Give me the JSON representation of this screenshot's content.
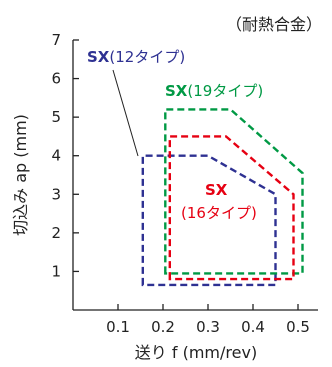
{
  "chart_data": {
    "type": "area",
    "note": "（耐熱合金）",
    "xlabel": "送り f (mm/rev)",
    "ylabel": "切込み ap (mm)",
    "xlim": [
      0,
      0.52
    ],
    "ylim": [
      0,
      7
    ],
    "x_ticks": [
      "0.1",
      "0.2",
      "0.3",
      "0.4",
      "0.5"
    ],
    "y_ticks": [
      "1",
      "2",
      "3",
      "4",
      "5",
      "6",
      "7"
    ],
    "grid": false,
    "colors": {
      "SX12": "#2e3192",
      "SX19": "#009944",
      "SX16": "#e60012",
      "axis": "#222222"
    },
    "series": [
      {
        "name_bold": "SX",
        "name_rest": "(12タイプ)",
        "color": "#2e3192",
        "points": [
          [
            0.155,
            0.65
          ],
          [
            0.155,
            4.0
          ],
          [
            0.3,
            4.0
          ],
          [
            0.45,
            3.0
          ],
          [
            0.45,
            0.65
          ]
        ]
      },
      {
        "name_bold": "SX",
        "name_rest": "(19タイプ)",
        "color": "#009944",
        "points": [
          [
            0.205,
            0.95
          ],
          [
            0.205,
            5.2
          ],
          [
            0.35,
            5.2
          ],
          [
            0.51,
            3.55
          ],
          [
            0.51,
            0.95
          ]
        ]
      },
      {
        "name_bold": "SX",
        "name_rest": "(16タイプ)",
        "color": "#e60012",
        "points": [
          [
            0.215,
            0.8
          ],
          [
            0.215,
            4.5
          ],
          [
            0.34,
            4.5
          ],
          [
            0.49,
            3.0
          ],
          [
            0.49,
            0.8
          ]
        ]
      }
    ]
  }
}
